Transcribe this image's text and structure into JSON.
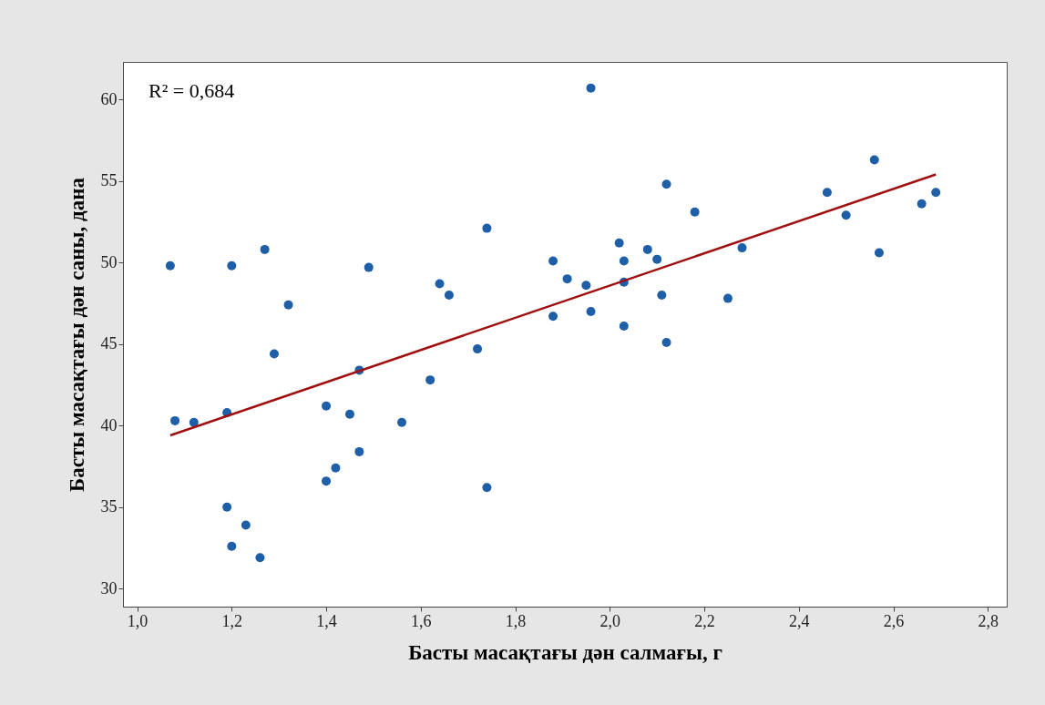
{
  "chart_data": {
    "type": "scatter",
    "xlabel": "Басты масақтағы дән салмағы, г",
    "ylabel": "Басты масақтағы дән саны, дана",
    "annotations": [
      "R² = 0,684"
    ],
    "xlim": [
      0.97,
      2.84
    ],
    "ylim": [
      28.9,
      62.3
    ],
    "xticks": [
      {
        "value": 1.0,
        "label": "1,0"
      },
      {
        "value": 1.2,
        "label": "1,2"
      },
      {
        "value": 1.4,
        "label": "1,4"
      },
      {
        "value": 1.6,
        "label": "1,6"
      },
      {
        "value": 1.8,
        "label": "1,8"
      },
      {
        "value": 2.0,
        "label": "2,0"
      },
      {
        "value": 2.2,
        "label": "2,2"
      },
      {
        "value": 2.4,
        "label": "2,4"
      },
      {
        "value": 2.6,
        "label": "2,6"
      },
      {
        "value": 2.8,
        "label": "2,8"
      }
    ],
    "yticks": [
      30,
      35,
      40,
      45,
      50,
      55,
      60
    ],
    "grid": false,
    "marker": "circle",
    "series": [
      {
        "color": "#1f5fa8",
        "x": [
          1.07,
          1.08,
          1.12,
          1.19,
          1.2,
          1.19,
          1.2,
          1.23,
          1.26,
          1.27,
          1.29,
          1.32,
          1.4,
          1.4,
          1.42,
          1.45,
          1.47,
          1.47,
          1.49,
          1.56,
          1.62,
          1.64,
          1.66,
          1.72,
          1.74,
          1.74,
          1.88,
          1.88,
          1.91,
          1.95,
          1.96,
          1.96,
          2.02,
          2.03,
          2.03,
          2.03,
          2.08,
          2.1,
          2.11,
          2.12,
          2.12,
          2.18,
          2.25,
          2.28,
          2.46,
          2.5,
          2.56,
          2.57,
          2.66,
          2.69
        ],
        "values": [
          49.8,
          40.3,
          40.2,
          40.8,
          49.8,
          35.0,
          32.6,
          33.9,
          31.9,
          50.8,
          44.4,
          47.4,
          41.2,
          36.6,
          37.4,
          40.7,
          43.4,
          38.4,
          49.7,
          40.2,
          42.8,
          48.7,
          48.0,
          44.7,
          52.1,
          36.2,
          50.1,
          46.7,
          49.0,
          48.6,
          60.7,
          47.0,
          51.2,
          50.1,
          48.8,
          46.1,
          50.8,
          50.2,
          48.0,
          54.8,
          45.1,
          53.1,
          47.8,
          50.9,
          54.3,
          52.9,
          56.3,
          50.6,
          53.6,
          54.3
        ]
      },
      {
        "type": "line",
        "color": "#a01010",
        "x": [
          1.07,
          2.69
        ],
        "values": [
          39.4,
          55.4
        ],
        "marker": "none"
      }
    ]
  }
}
